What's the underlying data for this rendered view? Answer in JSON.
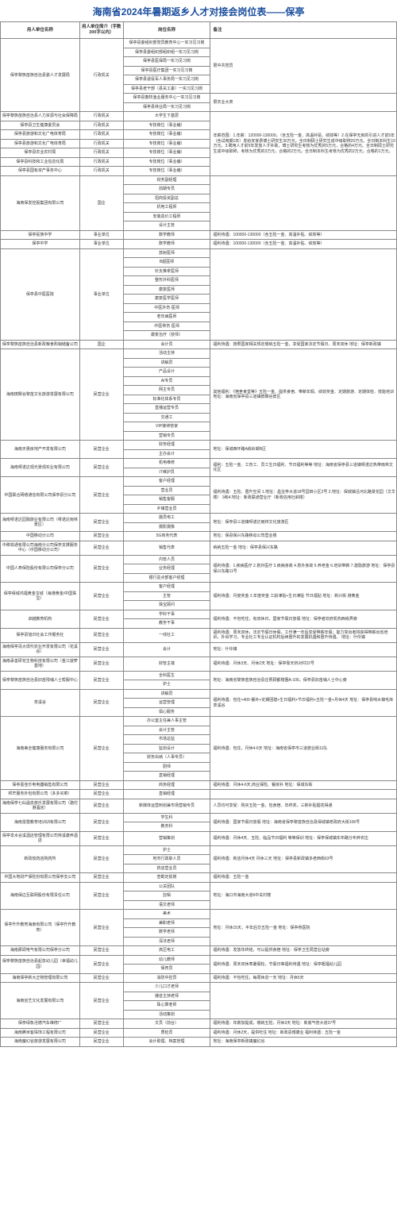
{
  "title": "海南省2024年暑期返乡人才对接会岗位表——保亭",
  "headers": {
    "employer": "用人单位名称",
    "intro": "用人单位简介（字数300字以内）",
    "position": "岗位名称",
    "notes": "备注"
  },
  "rows": [
    {
      "employer": "保亭黎族苗族自治县委人才发展局",
      "intro": "行政机关",
      "positions": [
        "保亭县委组织部党员教育中心一实习见习岗",
        "保亭县委组织部组织组一实习见习岗",
        "保亭县医保局一实习见习岗",
        "保亭县医疗集团一实习见习岗",
        "保亭县退役军人事务局一实习见习岗",
        "保亭县老干部（县关工委）一实习见习岗",
        "保亭县畜牧渔业服务中心一实习见习岗",
        "保亭县林业局一实习见习岗"
      ],
      "notesGroups": [
        {
          "span": 6,
          "text": "限中共党员"
        },
        {
          "span": 2,
          "text": "限农业大类"
        }
      ]
    },
    {
      "employer": "保亭黎族苗族自治县人力资源与社会保障局",
      "intro": "行政机关",
      "positions": [
        "大学生下基层"
      ],
      "notesGroups": [
        {
          "span": 1,
          "merged": true
        }
      ]
    },
    {
      "employer": "保亭县卫生健康委员会",
      "intro": "行政机关",
      "positions": [
        "专技岗位（事业编）"
      ],
      "notesGroups": [
        {
          "span": 1,
          "merged": true
        }
      ]
    },
    {
      "employer": "保亭县旅游和文化广电体育局",
      "intro": "行政机关",
      "positions": [
        "专技岗位（事业编）"
      ],
      "notesGroups": [
        {
          "span": 1,
          "merged": true
        }
      ]
    },
    {
      "employer": "保亭县旅游和文化广电体育局",
      "intro": "行政机关",
      "positions": [
        "专技岗位（事业编）"
      ],
      "notesGroups": [
        {
          "span": 1,
          "merged": true
        }
      ]
    },
    {
      "employer": "保亭县农业农村局",
      "intro": "行政机关",
      "positions": [
        "专技岗位（事业编）"
      ],
      "notesGroups": [
        {
          "span": 1,
          "merged": true
        }
      ]
    },
    {
      "employer": "保亭县科技和工业信息化局",
      "intro": "行政机关",
      "positions": [
        "专技岗位（事业编）"
      ],
      "notesGroups": [
        {
          "span": 1,
          "merged": true
        }
      ]
    },
    {
      "employer": "保亭县国有资产事务中心",
      "intro": "行政机关",
      "positions": [
        "专技岗位（事业编）"
      ],
      "notes": "年薪范围：1.年薪：120000-130000。（含五险一金、高温补贴、绩效等）2.在保亭无房的引进人才前5年（含试用期1年）发给安家费博士研究生30万元。全日制硕士研究生成中级职称20万元。全日制本科生10万元。3.聘用人才前5年发放人才补助，博士研究生考核为优秀的5万元，合格的4万元。全日制硕士研究生成中级职称，考核为优秀的3万元，合格的2万元。全日制本科生考核为优秀的2万元，合格的1万元。"
    },
    {
      "employer": "海南保发控股集团有限公司",
      "intro": "国企",
      "positions": [
        "财务副经理",
        "前期专员",
        "招商投资副总",
        "机电工程师",
        "安装造价工程师",
        "设计主管"
      ],
      "notesGroups": [
        {
          "span": 6,
          "text": ""
        }
      ]
    },
    {
      "employer": "保亭民族中学",
      "intro": "事业单位",
      "positions": [
        "数学教师"
      ],
      "notes": "福利待遇：100000-130000（含五险一金、高温补贴、绩效等）"
    },
    {
      "employer": "保亭中学",
      "intro": "事业单位",
      "positions": [
        "数学教师"
      ],
      "notes": "福利待遇：100000-130000（含五险一金、高温补贴、绩效等）"
    },
    {
      "employer": "保亭县中医医院",
      "intro": "事业单位",
      "positions": [
        "放射医师",
        "B超医师",
        "针灸推拿医师",
        "整形外科医师",
        "康复医师",
        "康复医学医师",
        "中医外伤·医师",
        "老年病医师",
        "中医骨伤·医师",
        "康复治疗（技师）"
      ],
      "notesGroups": [
        {
          "span": 10,
          "text": ""
        }
      ]
    },
    {
      "employer": "保亭黎族苗族自治县新政粮食购销储备公司",
      "intro": "国企",
      "positions": [
        "会计员"
      ],
      "notes": "福利待遇：按照国家相关规定缴纳五险一金，享受国家法定节假日、周末双休\n地址：保亭新政镇"
    },
    {
      "employer": "海南槟椰谷黎苗文化旅游发展有限公司",
      "intro": "民营企业",
      "positions": [
        "活动主持",
        "讲解员",
        "产品设计",
        "AI专员",
        "网主专员",
        "标准化体系专员",
        "直播运营专员",
        "交通工",
        "VIP接待管家",
        "营销专员"
      ],
      "notesGroups": [
        {
          "span": 10,
          "text": "其他福利：《宿舍食堂等》五险一金、提供食宿、带薪年假、绩效奖金、定期旅游、定期体检、技能培训\n地址：海南省保亭县三道镇槟椰谷景区"
        }
      ]
    },
    {
      "employer": "海南天惠房地产开发有限公司",
      "intro": "民营企业",
      "positions": [
        "财务经理",
        "主办会计"
      ],
      "notesGroups": [
        {
          "span": 2,
          "text": "地址：保城西环路A栋岭邮B区"
        }
      ]
    },
    {
      "employer": "海南呀诺达观光景观实业有限公司",
      "intro": "民营企业",
      "positions": [
        "机电维修",
        "IT维护员"
      ],
      "notesGroups": [
        {
          "span": 2,
          "text": "福利：五险一金、工伤工、员工生日福利、节日福利等等\n地址：海南省保亭县三道镇呀诺达热带雨林文化区"
        }
      ]
    },
    {
      "employer": "中国联合网络通信有限公司保亭县分公司",
      "intro": "民营企业",
      "positions": [
        "客户经理",
        "营业员",
        "销售客服",
        "乡镇营业员"
      ],
      "notesGroups": [
        {
          "span": 4,
          "text": "福利待遇：五险、晋升空间\n1.地址：昌宝亭大道18号园田小区2号\n2.地址：保城镇沿河北路景花园（文华楼）\n3和4.地址：新政联通营业厅（新政信用社斜楼）"
        }
      ]
    },
    {
      "employer": "海南呀诺达园融旅业有限公司（呀诺达雨林景区）",
      "intro": "民营企业",
      "positions": [
        "摄员电工",
        "摄影摄像"
      ],
      "notesGroups": [
        {
          "span": 2,
          "text": "地址：保亭县三道镇呀诺达雨林文化旅游区"
        }
      ]
    },
    {
      "employer": "中国移动分公司",
      "intro": "民营企业",
      "positions": [
        "5G商务代表"
      ],
      "notes": "地址：保县保兴东路移动公司营业楼"
    },
    {
      "employer": "中移铁通有限公司海南分公司保亭支撑服务中心（中国移动分公司）",
      "intro": "民营企业",
      "positions": [
        "销售代表"
      ],
      "notes": "纳纳五险一金\n地址：保亭县保兴东路"
    },
    {
      "employer": "中国人寿保险股份有限公司保亭分公司",
      "intro": "民营企业",
      "positions": [
        "内管人员",
        "业务经理",
        "银行驻点部客户经理"
      ],
      "notesGroups": [
        {
          "span": 3,
          "text": "福利待遇：1.疾病医疗 2.意外医疗 3.疾病身故 4.意外身故 5.养老金 6.培训带薪 7.激励旅游\n地址：保亭县保兴东路11号"
        }
      ]
    },
    {
      "employer": "保亭保城鸿福黄金宝城（海港黄金/中国珠宝）",
      "intro": "民营企业",
      "positions": [
        "客户经理",
        "主管",
        "珠宝顾问"
      ],
      "notesGroups": [
        {
          "span": 3,
          "text": "福利待遇：月度奖金 2.年度奖金 工龄津贴+生日津贴 节日福贴\n地址：新兴街  港黄金"
        }
      ]
    },
    {
      "employer": "卓越教育机构",
      "intro": "民营企业",
      "positions": [
        "学科干事",
        "教务干事"
      ],
      "notesGroups": [
        {
          "span": 2,
          "text": "福利待遇：不包吃住，有双休日，国家节假日放假\n地址：保亭者欢府机构西栋弄旁"
        }
      ]
    },
    {
      "employer": "保亭县旭日社会工作服务社",
      "intro": "民营企业",
      "positions": [
        "一线社工"
      ],
      "notes": "福利待遇：周末双休，法定节假日休假，工作满一年后享受带薪年假；能力突出者将获得带薪出省培训，外出学习，专业社工专业认证机构后续晋升的发展机遇和晋升待遇。\n地址：什伶镇"
    },
    {
      "employer": "海南保亭清大现代农业开发有限公司（花溪谷）",
      "intro": "民营企业",
      "positions": [
        "会计"
      ],
      "notes": "地址：什伶镇"
    },
    {
      "employer": "海南承善研花生物科技有限公司（金江菠萝基地）",
      "intro": "民营企业",
      "positions": [
        "财管主端"
      ],
      "notes": "福利待遇：月休3天、月休2天\n地址：保亭靠天桥对村22号"
    },
    {
      "employer": "保亭黎族苗族自治县旧苗残埔人士帮服中心",
      "intro": "民营企业",
      "positions": [
        "全科医生",
        "护士"
      ],
      "notesGroups": [
        {
          "span": 2,
          "text": "地址：海南省黎族苗族自治县庄照顾都楼圈A-106，保亭县旧苗埔人士中心旁"
        }
      ]
    },
    {
      "employer": "茶溪谷",
      "intro": "民营企业",
      "positions": [
        "讲解员",
        "运营管理",
        "俱心服务"
      ],
      "notesGroups": [
        {
          "span": 3,
          "text": "福利待遇：包住+400·餐补+定期团建+生日福利+节日福利+五险一金+月休4天\n地址：保亭县响水镇毛库茶溪谷"
        }
      ]
    },
    {
      "employer": "海南美全健康服务有限公司",
      "intro": "民营企业",
      "positions": [
        "办公室主任兼人事主管",
        "会计主管",
        "市场总监",
        "监划设计",
        "财务出纳（人事专员）",
        "厨师",
        "直销经理"
      ],
      "notesGroups": [
        {
          "span": 7,
          "text": "福利待遇：包住，月休4-6天\n地址：海南省保亭市三道旅业街11队"
        }
      ]
    },
    {
      "employer": "保亭嘉佳乐电电器销售有限公司",
      "intro": "民营企业",
      "positions": [
        "商务经理"
      ],
      "notes": "福利待遇：月休4-6天,商业保险、餐房补\n地址：保城东街"
    },
    {
      "employer": "邦芒服务外包有限公司（多多买菜）",
      "intro": "民营企业",
      "positions": [
        "直销经理"
      ],
      "notes": ""
    },
    {
      "employer": "海南保亭七仙温泉旅乐发展有限公司（骆佗港酒店）",
      "intro": "民营企业",
      "positions": [
        "新媒体运营刺划兼市场营销专员"
      ],
      "notes": "人员均可享受：购买五险一金，包食宿、年终奖，三新补贴烟花得通"
    },
    {
      "employer": "海南雷霆教育培训训有限公司",
      "intro": "民营企业",
      "positions": [
        "学生科",
        "教务科"
      ],
      "notesGroups": [
        {
          "span": 2,
          "text": "福利待遇：国家节假日放假\n地址：海南省保亭黎苗族自治县保城镇老政府大街106号"
        }
      ]
    },
    {
      "employer": "保亭享水谷溪酒店管理有限公司林溪康养酒店",
      "intro": "民营企业",
      "positions": [
        "营销策划"
      ],
      "notes": "福利待遇：月休4天、五险、临品节日福利 等等保训\n地址：保亭保城镇东布路分布养农庄"
    },
    {
      "employer": "新政玫药店购药所",
      "intro": "民营企业",
      "positions": [
        "护士",
        "地市行政职人员",
        "药店营业员"
      ],
      "notesGroups": [
        {
          "span": 3,
          "text": "福利待遇：新店月休4天 月休三天\n地址：保亭县新政镇多老西街63号"
        }
      ]
    },
    {
      "employer": "中国大地财产保险份有限公司保亭支公司",
      "intro": "民营企业",
      "positions": [
        "查勘定损岗"
      ],
      "notes": "福利待遇：五险一金"
    },
    {
      "employer": "海南保边互联网股份有限责任公司",
      "intro": "民营企业",
      "positions": [
        "公关团队",
        "剪辑",
        "语文老师"
      ],
      "notesGroups": [
        {
          "span": 3,
          "text": "地址：海口市海南大道6中关村楼"
        }
      ]
    },
    {
      "employer": "保亭升升教育海南有限公司（保亭升升教育）",
      "intro": "民营企业",
      "positions": [
        "美术",
        "兼职老师",
        "数学老师",
        "深法老师"
      ],
      "notesGroups": [
        {
          "span": 4,
          "text": "地址：月休15天，半年后交五险一金\n地址：保亭骨医院"
        }
      ]
    },
    {
      "employer": "海南那颂电气有限公司保亭分公司",
      "intro": "民营企业",
      "positions": [
        "高压电工"
      ],
      "notes": "福利待遇：发放年终结，可以提供食宿\n地址：保亭卫生局营业站旁"
    },
    {
      "employer": "保亭黎族苗族自治县起泉幼儿园（幸福幼儿园）",
      "intro": "民营企业",
      "positions": [
        "幼儿教师",
        "保育员"
      ],
      "notesGroups": [
        {
          "span": 2,
          "text": "福利待遇：周末双休寒暑假轮，节假日等福利待遇\n地址：保亭粗福幼儿园"
        }
      ]
    },
    {
      "employer": "海南保亭新大正物管理有限公司",
      "intro": "民营企业",
      "positions": [
        "消防中控员"
      ],
      "notes": "福利待遇：不包吃住，每周休息一天\n地址：月休5天"
    },
    {
      "employer": "海南创艺文化发展有限公司",
      "intro": "民营企业",
      "positions": [
        "少儿口才老师",
        "播音主持老师",
        "珠心算老师",
        "活动策划"
      ],
      "notesGroups": [
        {
          "span": 4,
          "text": ""
        }
      ]
    },
    {
      "employer": "保亭绿象淫德汽车维修厂",
      "intro": "民营企业",
      "positions": [
        "文员（前台）"
      ],
      "notes": "福利待遇：年薪加提成，缴纳五险，月休3天\n地址：新底气管大道37号"
    },
    {
      "employer": "海南腾米客珠饰工程有限公司",
      "intro": "民营企业",
      "positions": [
        "质检员"
      ],
      "notes": "福利待遇：月休2天，提供吃住\n地址：新政县博康业\n福利待遇：五险一金"
    },
    {
      "employer": "海南魔幻谷旅游发展有限公司",
      "intro": "民营企业",
      "positions": [
        "会计助理、档案管理"
      ],
      "notes": "地址：海南保亭新政镇魔幻谷"
    }
  ]
}
